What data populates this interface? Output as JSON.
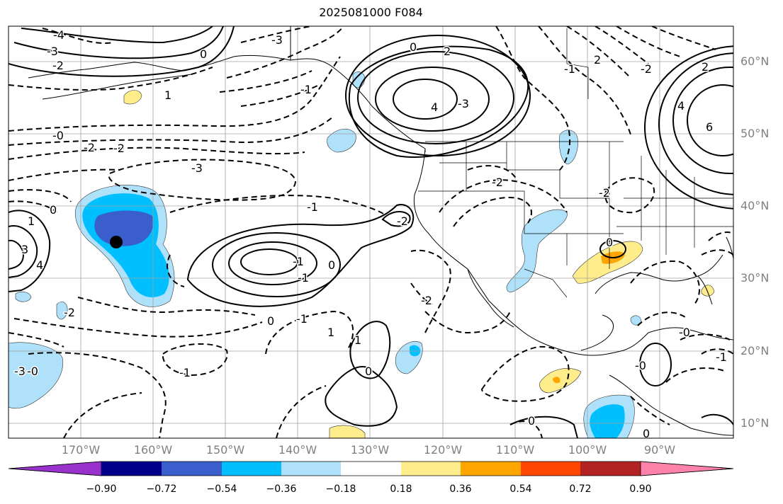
{
  "title": "2025081000 F084",
  "lat_labels": [
    "60°N",
    "50°N",
    "40°N",
    "30°N",
    "20°N",
    "10°N"
  ],
  "lon_labels": [
    "170°W",
    "160°W",
    "150°W",
    "140°W",
    "130°W",
    "120°W",
    "110°W",
    "100°W",
    "90°W"
  ],
  "colorbar": {
    "ticks": [
      "−0.90",
      "−0.72",
      "−0.54",
      "−0.36",
      "−0.18",
      "0.18",
      "0.36",
      "0.54",
      "0.72",
      "0.90"
    ],
    "colors": [
      "#9932cc",
      "#00008b",
      "#3a5fcd",
      "#00bfff",
      "#afe1fa",
      "#ffffff",
      "#ffec8b",
      "#ffa500",
      "#ff4500",
      "#b22222",
      "#ff82ab"
    ]
  },
  "contour_labels": [
    "-4",
    "-3",
    "-2",
    "-3",
    "-0",
    "-2",
    "-2",
    "-3",
    "-1",
    "0",
    "2",
    "4",
    "-3",
    "-1",
    "0",
    "-2",
    "-1",
    "2",
    "-2",
    "0",
    "1",
    "3",
    "4",
    "-2",
    "-1",
    "0",
    "-1",
    "-2",
    "0",
    "-1",
    "1",
    "1",
    "-2",
    "0",
    "-1",
    "-0",
    "1",
    "2",
    "4",
    "6",
    "-0",
    "-0",
    "0",
    "0",
    "-1",
    "0",
    "-2",
    "-3"
  ],
  "colors": {
    "grid": "#a0a0a0",
    "axis_text": "#808080",
    "contour": "#000000"
  }
}
